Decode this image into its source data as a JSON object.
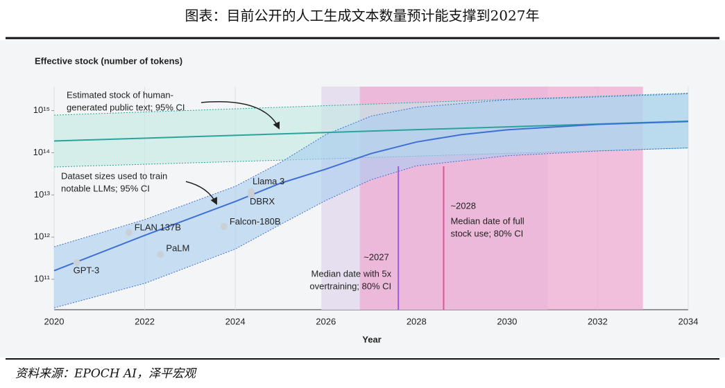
{
  "header": {
    "title": "图表：目前公开的人工生成文本数量预计能支撑到2027年"
  },
  "chart_data": {
    "type": "line",
    "y_label": "Effective stock (number of tokens)",
    "x_label": "Year",
    "log_y": true,
    "xlim": [
      2020,
      2034
    ],
    "xticks": [
      2020,
      2022,
      2024,
      2026,
      2028,
      2030,
      2032,
      2034
    ],
    "ylim": [
      19000000000.0,
      3700000000000000.0
    ],
    "yticks": [
      {
        "value": 100000000000.0,
        "label": "10¹¹"
      },
      {
        "value": 1000000000000.0,
        "label": "10¹²"
      },
      {
        "value": 10000000000000.0,
        "label": "10¹³"
      },
      {
        "value": 100000000000000.0,
        "label": "10¹⁴"
      },
      {
        "value": 1000000000000000.0,
        "label": "10¹⁵"
      }
    ],
    "spans": [
      {
        "xlim": [
          2025.9,
          2030.9
        ],
        "color": "#e6dff0"
      },
      {
        "xlim": [
          2026.75,
          2033
        ],
        "color": "#f0a8d2"
      }
    ],
    "bands": [
      {
        "x": [
          2020,
          2034
        ],
        "upper": [
          780000000000000.0,
          2600000000000000.0
        ],
        "lower": [
          46000000000000.0,
          130000000000000.0
        ],
        "color": "#bfe9e2"
      },
      {
        "x": [
          2020,
          2022,
          2024,
          2025,
          2026,
          2027,
          2028,
          2030,
          2032,
          2034
        ],
        "upper": [
          590000000000.0,
          2600000000000.0,
          16000000000000.0,
          59000000000000.0,
          270000000000000.0,
          740000000000000.0,
          1200000000000000.0,
          1800000000000000.0,
          2100000000000000.0,
          2500000000000000.0
        ],
        "lower": [
          21000000000.0,
          80000000000.0,
          520000000000.0,
          2000000000000.0,
          7400000000000.0,
          23000000000000.0,
          49000000000000.0,
          85000000000000.0,
          110000000000000.0,
          130000000000000.0
        ],
        "color": "#a9cdf0"
      }
    ],
    "series": [
      {
        "x": [
          2020,
          2034
        ],
        "values": [
          190000000000000.0,
          560000000000000.0
        ],
        "color": "#2aa39a"
      },
      {
        "x": [
          2020,
          2022,
          2024,
          2025,
          2026,
          2027,
          2028,
          2029,
          2030,
          2032,
          2034
        ],
        "values": [
          160000000000.0,
          1100000000000.0,
          7000000000000.0,
          19000000000000.0,
          41000000000000.0,
          96000000000000.0,
          180000000000000.0,
          270000000000000.0,
          350000000000000.0,
          470000000000000.0,
          550000000000000.0
        ],
        "color": "#3d6fd6"
      }
    ],
    "models": {
      "names": [
        "GPT-3",
        "FLAN 137B",
        "PaLM",
        "Falcon-180B",
        "Llama 3",
        "DBRX"
      ],
      "x": [
        2020.5,
        2021.65,
        2022.35,
        2023.75,
        2024.35,
        2024.35
      ],
      "values": [
        250000000000.0,
        1300000000000.0,
        390000000000.0,
        1800000000000.0,
        12000000000000.0,
        10000000000000.0
      ],
      "color": "#c9d0d6"
    },
    "medians": [
      {
        "x": 2027.6,
        "label": "~2027",
        "text": [
          "Median date with 5x",
          "overtraining; 80% CI"
        ],
        "color": "#9c5bd6"
      },
      {
        "x": 2028.6,
        "label": "~2028",
        "text": [
          "Median date of full",
          "stock use; 80% CI"
        ],
        "color": "#e0529e"
      }
    ],
    "annotations": [
      {
        "text": [
          "Estimated stock of human-",
          "generated public text; 95% CI"
        ]
      },
      {
        "text": [
          "Dataset sizes used to train",
          "notable LLMs; 95% CI"
        ]
      }
    ]
  },
  "footer": {
    "source": "资料来源：EPOCH AI，泽平宏观"
  }
}
